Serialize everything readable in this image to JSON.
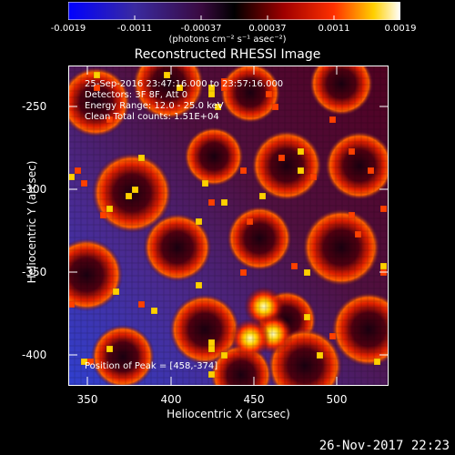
{
  "colorbar": {
    "ticks": [
      "-0.0019",
      "-0.0011",
      "-0.00037",
      "0.00037",
      "0.0011",
      "0.0019"
    ],
    "units": "(photons cm⁻² s⁻¹ asec⁻²)"
  },
  "image": {
    "title": "Reconstructed RHESSI Image",
    "annotations": [
      "25-Sep-2016 23:47:16.000 to 23:57:16.000",
      "Detectors: 3F 8F, Att 0",
      "Energy Range: 12.0 - 25.0 keV",
      "Clean    Total counts: 1.51E+04"
    ],
    "peak": "Position of Peak = [458,-374]",
    "x_axis": {
      "label": "Heliocentric X (arcsec)",
      "ticks": [
        "350",
        "400",
        "450",
        "500"
      ]
    },
    "y_axis": {
      "label": "Heliocentric Y (arcsec)",
      "ticks": [
        "-250",
        "-300",
        "-350",
        "-400"
      ]
    }
  },
  "timestamp": "26-Nov-2017 22:23"
}
